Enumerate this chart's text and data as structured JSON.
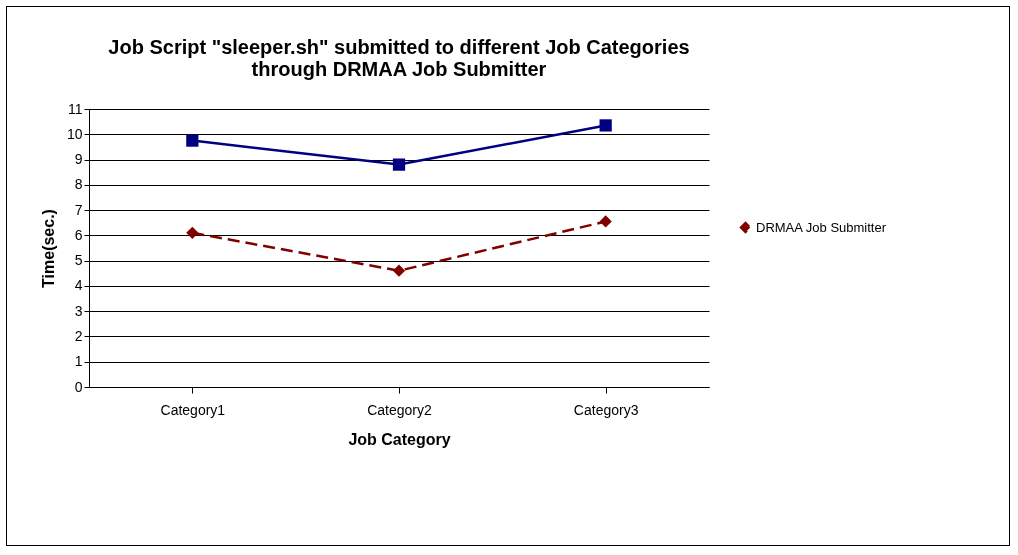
{
  "chart_data": {
    "type": "line",
    "title": "Job Script \"sleeper.sh\" submitted to different Job Categories through DRMAA Job Submitter",
    "xlabel": "Job Category",
    "ylabel": "Time(sec.)",
    "categories": [
      "Category1",
      "Category2",
      "Category3"
    ],
    "series": [
      {
        "color": "#000080",
        "values": [
          9.75,
          8.8,
          10.35
        ],
        "marker": "square",
        "line_style": "solid"
      },
      {
        "name": "DRMAA Job Submitter",
        "color": "#800000",
        "values": [
          6.1,
          4.6,
          6.55
        ],
        "marker": "diamond",
        "line_style": "dashed"
      }
    ],
    "ylim": [
      0,
      11
    ],
    "yticks": [
      0,
      1,
      2,
      3,
      4,
      5,
      6,
      7,
      8,
      9,
      10,
      11
    ],
    "grid": "y",
    "legend": "right"
  }
}
